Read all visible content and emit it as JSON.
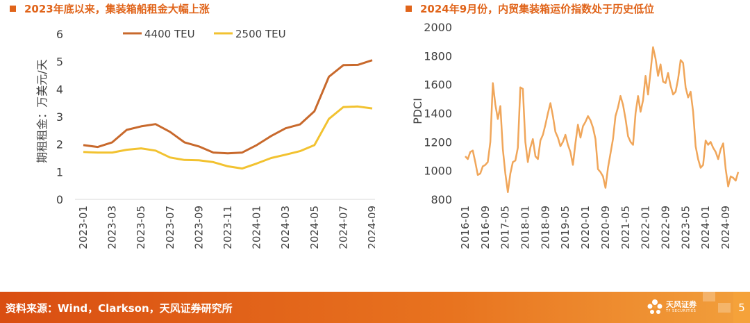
{
  "colors": {
    "accent": "#E0641A",
    "series_4400": "#C8692C",
    "series_2500": "#F2C230",
    "pdci": "#F0A65A",
    "footer": "#E0641A"
  },
  "footer": {
    "source": "资料来源：Wind，Clarkson，天风证券研究所",
    "logo_text": "天风证券",
    "logo_sub": "TF SECURITIES",
    "page_number": "5"
  },
  "chart_data": [
    {
      "type": "line",
      "title": "2023年底以来，集装箱船租金大幅上涨",
      "xlabel": "",
      "ylabel": "期租租金：万美元/天",
      "ylim": [
        0,
        6
      ],
      "yticks": [
        "0",
        "1",
        "2",
        "3",
        "4",
        "5",
        "6"
      ],
      "x": [
        "2023-01",
        "2023-02",
        "2023-03",
        "2023-04",
        "2023-05",
        "2023-06",
        "2023-07",
        "2023-08",
        "2023-09",
        "2023-10",
        "2023-11",
        "2023-12",
        "2024-01",
        "2024-02",
        "2024-03",
        "2024-04",
        "2024-05",
        "2024-06",
        "2024-07",
        "2024-08",
        "2024-09"
      ],
      "xtick_labels": [
        "2023-01",
        "2023-03",
        "2023-05",
        "2023-07",
        "2023-09",
        "2023-11",
        "2024-01",
        "2024-03",
        "2024-05",
        "2024-07",
        "2024-09"
      ],
      "legend": "top",
      "grid": false,
      "series": [
        {
          "name": "4400 TEU",
          "values": [
            1.97,
            1.9,
            2.07,
            2.52,
            2.65,
            2.73,
            2.45,
            2.07,
            1.92,
            1.7,
            1.67,
            1.7,
            1.97,
            2.3,
            2.58,
            2.72,
            3.2,
            4.45,
            4.87,
            4.88,
            5.05
          ]
        },
        {
          "name": "2500 TEU",
          "values": [
            1.72,
            1.7,
            1.7,
            1.8,
            1.85,
            1.77,
            1.52,
            1.43,
            1.42,
            1.35,
            1.2,
            1.12,
            1.3,
            1.5,
            1.62,
            1.75,
            1.97,
            2.92,
            3.35,
            3.37,
            3.3
          ]
        }
      ]
    },
    {
      "type": "line",
      "title": "2024年9月份，内贸集装箱运价指数处于历史低位",
      "xlabel": "",
      "ylabel": "PDCI",
      "ylim": [
        800,
        2000
      ],
      "yticks": [
        "800",
        "1000",
        "1200",
        "1400",
        "1600",
        "1800",
        "2000"
      ],
      "x_start": "2016-01",
      "xtick_labels": [
        "2016-01",
        "2016-09",
        "2017-05",
        "2018-01",
        "2018-09",
        "2019-05",
        "2020-01",
        "2020-09",
        "2021-05",
        "2022-01",
        "2022-09",
        "2023-05",
        "2024-01",
        "2024-09"
      ],
      "legend": "none",
      "grid": false,
      "series": [
        {
          "name": "",
          "values": [
            1100,
            1080,
            1130,
            1140,
            1060,
            970,
            980,
            1030,
            1040,
            1060,
            1200,
            1610,
            1460,
            1360,
            1450,
            1150,
            980,
            850,
            980,
            1060,
            1070,
            1160,
            1580,
            1570,
            1200,
            1060,
            1160,
            1220,
            1100,
            1080,
            1210,
            1250,
            1320,
            1400,
            1470,
            1380,
            1270,
            1230,
            1170,
            1200,
            1250,
            1180,
            1130,
            1040,
            1190,
            1320,
            1230,
            1310,
            1340,
            1380,
            1350,
            1300,
            1220,
            1010,
            990,
            960,
            880,
            1020,
            1120,
            1220,
            1380,
            1440,
            1520,
            1460,
            1360,
            1240,
            1200,
            1180,
            1400,
            1520,
            1410,
            1490,
            1660,
            1530,
            1690,
            1860,
            1780,
            1660,
            1740,
            1620,
            1610,
            1680,
            1590,
            1530,
            1550,
            1640,
            1770,
            1750,
            1580,
            1510,
            1550,
            1410,
            1170,
            1080,
            1020,
            1040,
            1210,
            1180,
            1200,
            1160,
            1130,
            1080,
            1150,
            1190,
            1010,
            890,
            960,
            950,
            930,
            990
          ]
        }
      ]
    }
  ]
}
